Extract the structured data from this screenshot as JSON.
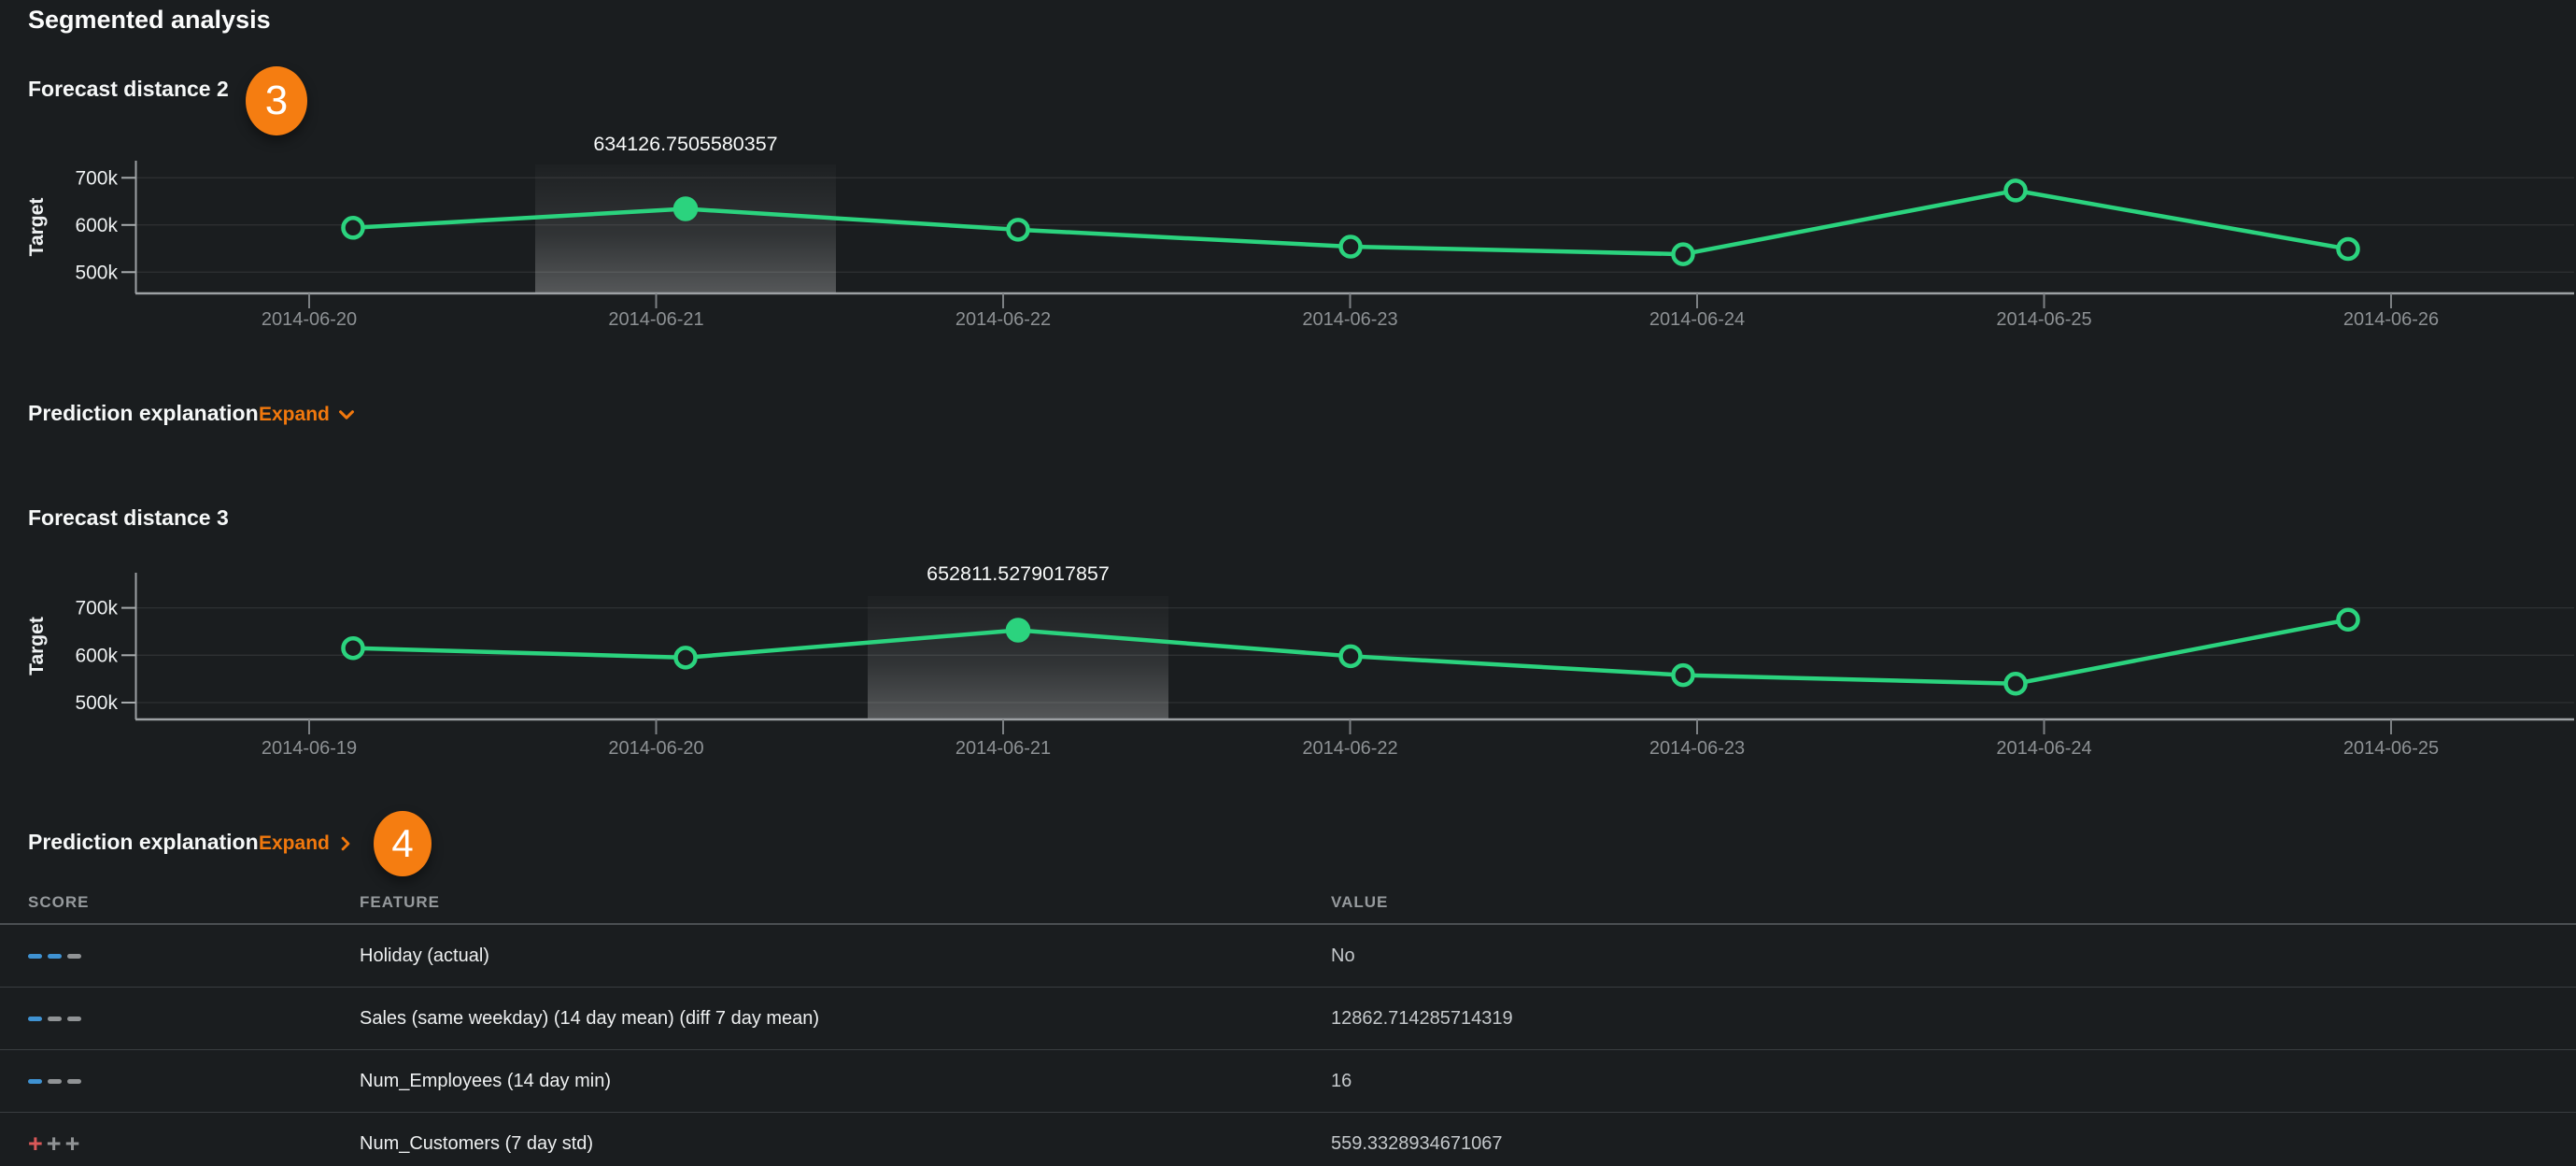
{
  "page": {
    "title": "Segmented analysis"
  },
  "sections": {
    "fd2": {
      "title": "Forecast distance 2",
      "badge": "3"
    },
    "pe1": {
      "title": "Prediction explanation",
      "expand_label": "Expand"
    },
    "fd3": {
      "title": "Forecast distance 3"
    },
    "pe2": {
      "title": "Prediction explanation",
      "expand_label": "Expand",
      "badge": "4"
    }
  },
  "chart_data": [
    {
      "type": "line",
      "title": "Forecast distance 2",
      "ylabel": "Target",
      "x": [
        "2014-06-20",
        "2014-06-21",
        "2014-06-22",
        "2014-06-23",
        "2014-06-24",
        "2014-06-25",
        "2014-06-26"
      ],
      "values": [
        594000,
        634126.7505580357,
        590000,
        554000,
        538000,
        673000,
        549000
      ],
      "highlight_index": 1,
      "highlight_label": "634126.7505580357",
      "yticks": [
        "700k",
        "600k",
        "500k"
      ],
      "ytick_values": [
        700000,
        600000,
        500000
      ],
      "ylim": [
        455000,
        735000
      ],
      "grid": true,
      "legend": "none"
    },
    {
      "type": "line",
      "title": "Forecast distance 3",
      "ylabel": "Target",
      "x": [
        "2014-06-19",
        "2014-06-20",
        "2014-06-21",
        "2014-06-22",
        "2014-06-23",
        "2014-06-24",
        "2014-06-25"
      ],
      "values": [
        615000,
        595000,
        652811.5279017857,
        598000,
        558000,
        540000,
        675000
      ],
      "highlight_index": 2,
      "highlight_label": "652811.5279017857",
      "yticks": [
        "700k",
        "600k",
        "500k"
      ],
      "ytick_values": [
        700000,
        600000,
        500000
      ],
      "ylim": [
        464500,
        740000
      ],
      "grid": true,
      "legend": "none"
    }
  ],
  "table": {
    "headers": [
      "SCORE",
      "FEATURE",
      "VALUE"
    ],
    "rows": [
      {
        "score_glyph": "dash",
        "score_colors": [
          "blue",
          "blue",
          "gray"
        ],
        "feature": "Holiday (actual)",
        "value": "No"
      },
      {
        "score_glyph": "dash",
        "score_colors": [
          "blue",
          "gray",
          "gray"
        ],
        "feature": "Sales (same weekday) (14 day mean) (diff 7 day mean)",
        "value": "12862.714285714319"
      },
      {
        "score_glyph": "dash",
        "score_colors": [
          "blue",
          "gray",
          "gray"
        ],
        "feature": "Num_Employees (14 day min)",
        "value": "16"
      },
      {
        "score_glyph": "plus",
        "score_colors": [
          "red",
          "gray",
          "gray"
        ],
        "feature": "Num_Customers (7 day std)",
        "value": "559.3328934671067"
      }
    ]
  },
  "colors": {
    "background": "#1a1d1f",
    "accent_orange": "#f1780d",
    "badge_orange": "#f57d11",
    "line_green": "#2bd37e",
    "score_blue": "#3f92d2",
    "score_gray": "#909395",
    "score_red": "#d95858",
    "axis": "#9da1a4",
    "grid": "rgba(255,255,255,0.09)",
    "x_tick": "#7c8083",
    "x_tick_label": "#8d9194",
    "y_tick_label": "#eef1f2",
    "value_label": "#f8fafa",
    "band_top": "rgba(255,255,255,0.015)",
    "band_mid": "rgba(255,255,255,0.10)",
    "band_bottom": "rgba(255,255,255,0.26)"
  }
}
